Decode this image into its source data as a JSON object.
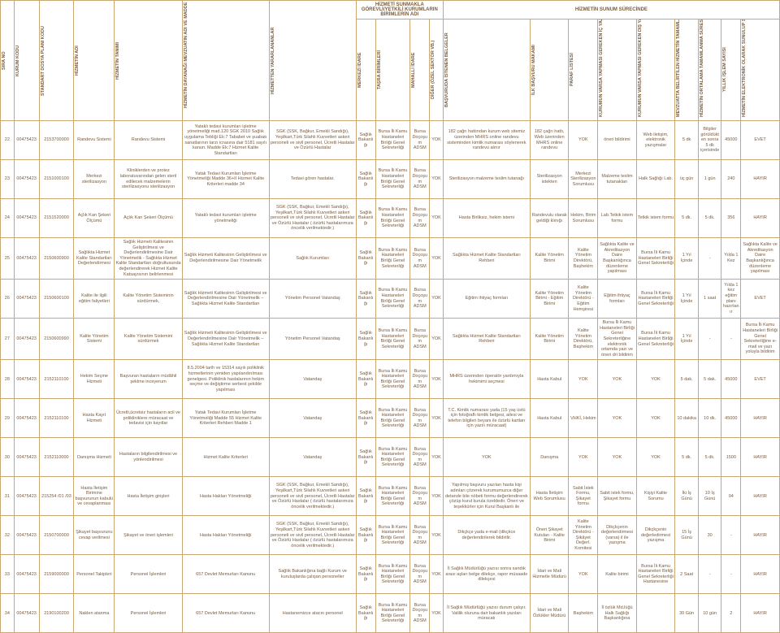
{
  "headers": {
    "group1": "HİZMETİ SUNMAKLA GÖREVLİ/YETKİLİ KURUMLARIN BİRİMLERİN ADI",
    "group2": "HİZMETİN SUNUM SÜRECİNDE",
    "cols": [
      "SIRA NO",
      "KURUM KODU",
      "STANDART DOSYA PLANI KODU",
      "HİZMETİN ADI",
      "HİZMETİN TANIMI",
      "HİZMETİN DAYANAĞI MEVZUATIN ADI VE MADDE NUMARASI",
      "HİZMETTEN YARARLANANLAR",
      "MERKEZİ İDARE",
      "TAŞRA BİRİMLERİ",
      "MAHALLİ İDARE",
      "DİĞER (ÖZEL SEKTÖR VB.)",
      "BAŞVURUDA İSTENEN BELGELER",
      "İLK BAŞVURU MAKAMI",
      "PARAF LİSTESİ",
      "KURUMUN VARSA YAPMASI GEREKEN İÇ YAZIŞMALAR",
      "KURUMUN VARSA YAPMASI GEREKEN DIŞ YAZIŞMALAR",
      "MEVZUATTA BELİRTİLEN HİZMETİN TAMAMLANMA SÜRESİ",
      "HİZMETİN ORTALAMA TAMAMLANMA SÜRESİ",
      "YILLIK İŞLEM SAYISI",
      "HİZMETİN ELEKTRONİK OLARAK SUNULUP SUNULMADIĞI"
    ]
  },
  "rows": [
    {
      "n": "22",
      "kurum": "00475423",
      "dosya": "2153700000",
      "adi": "Randevu Sistemi",
      "tanim": "Randevu Sistemi",
      "dayanak": "Yataklı tedavi kurumları işletme yönetmeliği mad.120 SGK 2010 Sağlık uygulama Tebliği Ek:7 Tababet ve şuabatı sanatlarının tarzı icrasına dair 5181 sayılı kanun. Madde Ek:7 Hizmet Kalite Standartları",
      "yarar": "SGK (SSK, Bağkur, Emekli Sandığı), Yeşilkart,Türk Silahlı Kuvvetleri askeri personeli ve sivil personel, Ücretli Hastalar ve Özürlü Hastalar",
      "merkezi": "Sağlık Bakanlığı",
      "tasra": "Bursa İli Kamu Hastaneleri Birliği Genel Sekreterliği",
      "mahalli": "Bursa Doçoşum ADSM",
      "diger": "YOK",
      "belge": "182 çağrı hattından kurum web sitemiz üzerinden MHRS online randevu sisteminden kimlik numarası söylenerek randevu alınır",
      "ilk": "182 çağrı hattı, Web üzerinden MHRS online randevu",
      "paraf": "YOK",
      "ic": "öneri bildirimi",
      "dis": "Web iletişim, elektronik yazışmalar",
      "mevzuat": "5 dk",
      "hedef": "Bilgiler görüldükten sonra 5 dk içerisinde",
      "yil": "45000",
      "elek": "EVET"
    },
    {
      "n": "23",
      "kurum": "00475423",
      "dosya": "2151000100",
      "adi": "Merkezi sterilizasyon",
      "tanim": "Kliniklerden ve protez laboratuvarından gelen steril edilecek malzemelerin sterilizasyonu sterilizasyon",
      "dayanak": "Yatak Tedavi Kurumları İşletme Yönetmeliği Madde 36+II Hizmet Kalite Kriterleri madde 34",
      "yarar": "Tedavi gören hastalar.",
      "merkezi": "Sağlık Bakanlığı",
      "tasra": "Bursa İli Kamu Hastaneleri Birliği Genel Sekreterliği",
      "mahalli": "Bursa Doçoşum ADSM",
      "diger": "YOK",
      "belge": "Sterilizasyon malzeme teslim tutanağı",
      "ilk": "Sterilizasyon istekten",
      "paraf": "Merkezi Sterilizasyon Sorumlusu",
      "ic": "Malzeme teslim tutanakları",
      "dis": "Halk Sağlığı Lab.",
      "mevzuat": "üç gün",
      "hedef": "1 gün",
      "yil": "240",
      "elek": "HAYIR"
    },
    {
      "n": "24",
      "kurum": "00475423",
      "dosya": "2151520000",
      "adi": "Açlık Kan Şekeri Ölçümü",
      "tanim": "Açlık Kan Şekeri Ölçümü",
      "dayanak": "Yataklı tedavi kurumları işletme yönetmeliği",
      "yarar": "SGK (SSK, Bağkur, Emekli Sandığı), Yeşilkart,Türk Silahlı Kuvvetleri askeri personeli ve sivil personel, Ücretli Hastalar ve Özürlü Hastalar ( özürlü hastalarımıza öncelik verilmektedir.)",
      "merkezi": "Sağlık Bakanlığı",
      "tasra": "Bursa İli Kamu Hastaneleri Birliği Genel Sekreterliği",
      "mahalli": "Bursa Doçoşum ADSM",
      "diger": "YOK",
      "belge": "Hasta Birliksiz, hekim istemi",
      "ilk": "Randevulu olarak geldiği klınığı",
      "paraf": "Hekim, Birim Sorumlusu",
      "ic": "Lab.Tetkik istem formu",
      "dis": "Tetkik istem formu",
      "mevzuat": "5 dk.",
      "hedef": "5 dk.",
      "yil": "356",
      "elek": "HAYIR"
    },
    {
      "n": "25",
      "kurum": "00475423",
      "dosya": "2150600900",
      "adi": "Sağlıkta Hizmet Kalite Standartları Değerlendirmesi",
      "tanim": "Sağlık Hizmeti Kalitesinin Geliştirilmesi ve Değerlendirilmesine Dair Yönetmelik - Sağlıkta Hizmet Kalite Standartları doğrultusunda değerlendirerek Hizmet Kalite Katsayısının belirlenmesi",
      "dayanak": "Sağlık Hizmeti Kalitesinin Geliştirilmesi ve Değerlendirilmesine Dair Yönetmelik",
      "yarar": "Sağlık Kurumları",
      "merkezi": "Sağlık Bakanlığı",
      "tasra": "Bursa İli Kamu Hastaneleri Birliği Genel Sekreterliği",
      "mahalli": "Bursa Doçoşum ADSM",
      "diger": "YOK",
      "belge": "Sağlıkta Hizmet Kalite Standartları Rehberi",
      "ilk": "Kalite Yönetim Birimi",
      "paraf": "Kalite Yönetim Direktörü, Başhekim",
      "ic": "Sağlıkta Kalite ve Akreditasyon Daire Başkanlığınca düzenleme yapılması",
      "dis": "Bursa İli Kamu Hastaneleri Birliği Genel Sekreterliği",
      "mevzuat": "1 Yıl İçinde",
      "hedef": "-",
      "yil": "Yılda 1 Kez",
      "elek": "Sağlıkta Kalite ve Akreditasyon Daire Başkanlığınca düzenleme yapılması"
    },
    {
      "n": "26",
      "kurum": "00475423",
      "dosya": "2150600100",
      "adi": "Kalite ile ilgili eğitim faliyetleri",
      "tanim": "Kalite Yönetim Sisteminin sürdürmek,",
      "dayanak": "Sağlık Hizmeti Kalitesinin Geliştirilmesi ve Değerlendirilmesine Dair Yönetmelik – Sağlıkta Hizmet Kalite Standartları",
      "yarar": "Yönetim Personel Vatandaş",
      "merkezi": "Sağlık Bakanlığı",
      "tasra": "Bursa İli Kamu Hastaneleri Birliği Genel Sekreterliği",
      "mahalli": "Bursa Doçoşum ADSM",
      "diger": "YOK",
      "belge": "Eğitim ihtiyaç formları",
      "ilk": "Kalite Yönetim Birimi - Eğitim Birimi",
      "paraf": "Kalite Yönetim Direktörü - Eğitim Hemşiresi",
      "ic": "Eğitim ihtiyaç formları",
      "dis": "Bursa İli Kamu Hastaneleri Birliği Genel Sekreterliği",
      "mevzuat": "1 Yıl İçinde",
      "hedef": "1 saat",
      "yil": "Yılda 1 kez eğitim planı hazırlanır",
      "elek": "EVET"
    },
    {
      "n": "27",
      "kurum": "00475423",
      "dosya": "2150600990",
      "adi": "Kalite Yönetim Sistemi",
      "tanim": "Kalite Yönetim Sistemini sürdürmek",
      "dayanak": "Sağlık Hizmeti Kalitesinin Geliştirilmesi ve Değerlendirilmesine Dair Yönetmelik – Sağlıkta Hizmet Kalite Standartları",
      "yarar": "Yönetim Personel Vatandaş",
      "merkezi": "Sağlık Bakanlığı",
      "tasra": "Bursa İli Kamu Hastaneleri Birliği Genel Sekreterliği",
      "mahalli": "Bursa Doçoşum ADSM",
      "diger": "YOK",
      "belge": "Sağlıkta Hizmet Kalite Standartları Rehberi",
      "ilk": "Kalite Yönetim Birimi",
      "paraf": "Kalite Yönetim Direktörü, Başhekim",
      "ic": "Bursa İli Kamu Hastaneleri Birliği Genel Sekreterliğine elektronik ortamda yazı ve öneri dri bildirim",
      "dis": "Bursa İli Kamu Hastaneleri Birliği Genel Sekreterliği",
      "mevzuat": "1 Yıl İçinde",
      "hedef": "-",
      "yil": "-",
      "elek": "Bursa İli Kamu Hastaneleri Birliği Genel Sekreterliğine e-mail ve yazı yoluyla bildirim"
    },
    {
      "n": "28",
      "kurum": "00475423",
      "dosya": "2152110100",
      "adi": "Hekim Seçme Hizmeti",
      "tanim": "Başvuran hastaların müdâhil şeklme inceyerum",
      "dayanak": "8.5.2004 tarih ve 15314 sayılı poliklinik hizmetlerinin yeniden yapılandırılması genelgesi. Poliklinik hastalarının hekim seçme ve değiştirme serbest şekilde yapılması",
      "yarar": "Vatandaş",
      "merkezi": "Sağlık Bakanlığı",
      "tasra": "Bursa İli Kamu Hastaneleri Birliği Genel Sekreterliği",
      "mahalli": "Bursa Doçoşum ADSM",
      "diger": "YOK",
      "belge": "MHRS üzerinden öperatör yardımıyla hekimimi seçmesi",
      "ilk": "Hasta Kabul",
      "paraf": "YOK",
      "ic": "YOK",
      "dis": "YOK",
      "mevzuat": "5 dak.",
      "hedef": "5 dak.",
      "yil": "45000",
      "elek": "EVET"
    },
    {
      "n": "29",
      "kurum": "00475423",
      "dosya": "2152110100",
      "adi": "Hasta Kayıt Hizmeti",
      "tanim": "Ücretli,ücretsiz hastaların  acil ve polikliniklere müracaat ve tedavisi için kayıtlar",
      "dayanak": "Yatak Tedavi Kurumları İşletme Yönetmeliği Madde 55 Hizmet Kalite Kriterleri Rehberi Madde 1",
      "yarar": "Vatandaş",
      "merkezi": "Sağlık Bakanlığı",
      "tasra": "Bursa İli Kamu Hastaneleri Birliği Genel Sekreterliği",
      "mahalli": "Bursa Doçoşum ADSM",
      "diger": "YOK",
      "belge": "T.C. Kimlik numarası yada (15 yaş üstü için fotoğraflı kimlik belgesi, ailesi ve telefon bilgileri beyanı ile özürlü kartları için yazılı müracaat)",
      "ilk": "Hasta Kabul",
      "paraf": "VHKİ, Hekim",
      "ic": "YOK",
      "dis": "YOK",
      "mevzuat": "10 dakika",
      "hedef": "10 dk.",
      "yil": "45000",
      "elek": "HAYIR"
    },
    {
      "n": "30",
      "kurum": "00475423",
      "dosya": "2152110000",
      "adi": "Danışma Hizmeti",
      "tanim": "Hastaların bilgilendirilmesi ve yönlendirilmesi",
      "dayanak": "Hizmet Kalite Kriterleri",
      "yarar": "Vatandaş",
      "merkezi": "Sağlık Bakanlığı",
      "tasra": "Bursa İli Kamu Hastaneleri Birliği Genel Sekreterliği",
      "mahalli": "Bursa Doçoşum ADSM",
      "diger": "YOK",
      "belge": "YOK",
      "ilk": "Danışma",
      "paraf": "YOK",
      "ic": "YOK",
      "dis": "YOK",
      "mevzuat": "5 dk.",
      "hedef": "5 dk.",
      "yil": "1500",
      "elek": "HAYIR"
    },
    {
      "n": "31",
      "kurum": "00475423",
      "dosya": "215254 /01 /03",
      "adi": "Hasta İletişim Birimine başvurunun kabulü ve cevaplanması",
      "tanim": "Hasta İletişim girişleri",
      "dayanak": "Hasta Hakları Yönetmeliği",
      "yarar": "SGK (SSK, Bağkur, Emekli Sandığı), Yeşilkart,Türk Silahlı Kuvvetleri askeri personeli ve sivil personel, Ücretli Hastalar ve Özürlü Hastalar ( özürlü hastalarımıza öncelik verilmektedir.)",
      "merkezi": "Sağlık Bakanlığı",
      "tasra": "Bursa İli Kamu Hastaneleri Birliği Genel Sekreterliği",
      "mahalli": "Bursa Doçoşum ADSM",
      "diger": "YOK",
      "belge": "Yapılmış başvuru yazıları hasta kişi adınları çözerek kurumumuzca diğer detande bile nöbeti formu değerlendirerek çözüp kurul kurula özeldedir. Öneri ve teşekkürler için Kurul Başkanlı ile",
      "ilk": "Hasta İletişim Web Sorumlusu",
      "paraf": "Sabit İstek Formu, Şikayet formu",
      "ic": "Sabit istek formu, Şikayet formu",
      "dis": "Kişiyi Kalite Sorumu",
      "mevzuat": "İki İş Günü",
      "hedef": "10 İş Günü",
      "yil": "94",
      "elek": "HAYIR"
    },
    {
      "n": "32",
      "kurum": "00475423",
      "dosya": "2150700000",
      "adi": "Şikayet başvurunu cevap verilmesi",
      "tanim": "Şikayet ve öneri işlemleri",
      "dayanak": "Hasta Hakları Yönetmeliği",
      "yarar": "SGK (SSK, Bağkur, Emekli Sandığı), Yeşilkart,Türk Silahlı Kuvvetleri askeri personeli ve sivil personel, Ücretli Hastalar ve Özürlü Hastalar ( özürlü hastalarımıza öncelik verilmektedir.)",
      "merkezi": "Sağlık Bakanlığı",
      "tasra": "Bursa İli Kamu Hastaneleri Birliği Genel Sekreterliği",
      "mahalli": "Bursa Doçoşum ADSM",
      "diger": "YOK",
      "belge": "Dikçkçe yada e-mail (dikçkce değerlendirilerek bildirilir.",
      "ilk": "Öneri Şikayet Kutuları - Kalite Birimi",
      "paraf": "Kalite Yönetim Direktörü - Şikâyet Değerl. Komitesi",
      "ic": "Dikçkçenin değerlendirmesi (varsa) il ile yazışma",
      "dis": "Dikçkçenin değerledirmesi yazışma",
      "mevzuat": "15 İş Günü",
      "hedef": "30",
      "yil": "-",
      "elek": "HAYIR"
    },
    {
      "n": "33",
      "kurum": "00475423",
      "dosya": "2159000000",
      "adi": "Personel Takipleri",
      "tanim": "Personel İşlemleri",
      "dayanak": "657 Devlet Memurları Kanunu",
      "yarar": "Sağlık Bakanlığına bağlı Kurum ve kuruluşlarda çalışan personeller",
      "merkezi": "Sağlık Bakanlığı",
      "tasra": "Bursa İli Kamu Hastaneleri Birliği Genel Sekreterliği",
      "mahalli": "Bursa Doçoşum ADSM",
      "diger": "YOK",
      "belge": "İl Sağlık Müdürlüğü yazısı sonra sandık arası aşları belge dilekçe, rapor müsaade dilekçesi",
      "ilk": "İdari ve Mali Hizmetle Müdürü",
      "paraf": "YOK",
      "ic": "Kalite birimi",
      "dis": "Bursa İli Kamu Hastaneleri Birliği Genel Sekreterliği Hastanesine",
      "mevzuat": "2 Saat",
      "hedef": "-",
      "yil": "-",
      "elek": "HAYIR"
    },
    {
      "n": "34",
      "kurum": "00475423",
      "dosya": "2190100200",
      "adi": "Naklen atanma",
      "tanim": "Personel İşlemleri",
      "dayanak": "657 Devlet Memurları Kanunu",
      "yarar": "Hastanemizce atacın personel",
      "merkezi": "Sağlık Bakanlığı",
      "tasra": "Bursa İli Kamu Hastaneleri Birliği Genel Sekreterliği",
      "mahalli": "Bursa Doçoşum ADSM",
      "diger": "YOK",
      "belge": "İl Sağlık Müdürlüğü yazısı durum çalışır. Valilik oluruna dair bakanlık yazıları müracatı",
      "ilk": "İdari ve Mali Özlükler Müdürü",
      "paraf": "Başhekim",
      "ic": "İl özlük Md.lüğü Halk Sağlığı Başkanlığına",
      "dis": "",
      "mevzuat": "30 Gün",
      "hedef": "10 gün",
      "yil": "2",
      "elek": "HAYIR"
    }
  ]
}
